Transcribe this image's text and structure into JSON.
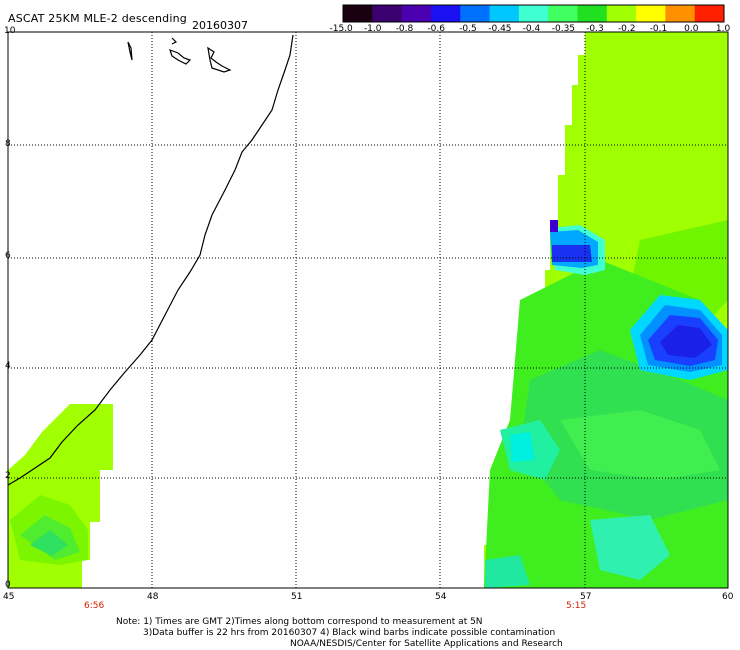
{
  "header": {
    "title": "ASCAT 25KM MLE-2 descending",
    "date": "20160307"
  },
  "colorbar": {
    "labels": [
      "-15.0",
      "-1.0",
      "-0.8",
      "-0.6",
      "-0.5",
      "-0.45",
      "-0.4",
      "-0.35",
      "-0.3",
      "-0.2",
      "-0.1",
      "0.0",
      "1.0"
    ],
    "colors": [
      "#1a0010",
      "#3a0070",
      "#4b00b0",
      "#1a10f0",
      "#0070ff",
      "#00c8ff",
      "#40ffd0",
      "#40ff60",
      "#20e020",
      "#a0ff00",
      "#ffff00",
      "#ff9000",
      "#ff2000"
    ]
  },
  "axes": {
    "x_ticks": [
      "45",
      "48",
      "51",
      "54",
      "57",
      "60"
    ],
    "y_ticks": [
      "0",
      "2",
      "4",
      "6",
      "8",
      "10"
    ],
    "times": [
      "6:56",
      "5:15"
    ]
  },
  "notes": [
    "Note: 1) Times are GMT 2)Times along bottom correspond to measurement at 5N",
    "3)Data buffer is 22 hrs from 20160307 4) Black wind barbs indicate possible contamination",
    "NOAA/NESDIS/Center for Satellite Applications and Research"
  ]
}
